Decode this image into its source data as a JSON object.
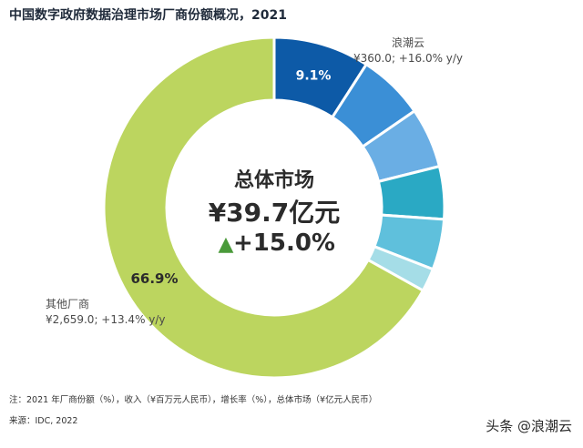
{
  "chart_data": {
    "type": "pie",
    "title": "中国数字政府数据治理市场厂商份额概况，2021",
    "donut": true,
    "slices": [
      {
        "name": "浪潮云",
        "value": 9.1,
        "label": "9.1%",
        "color": "#0d5aa7",
        "annotation": "¥360.0; +16.0% y/y"
      },
      {
        "name": "",
        "value": 6.3,
        "label": "",
        "color": "#3b8fd6",
        "annotation": ""
      },
      {
        "name": "",
        "value": 5.7,
        "label": "",
        "color": "#6aaee4",
        "annotation": ""
      },
      {
        "name": "",
        "value": 5.0,
        "label": "",
        "color": "#2aa9c4",
        "annotation": ""
      },
      {
        "name": "",
        "value": 4.8,
        "label": "",
        "color": "#5fc0dc",
        "annotation": ""
      },
      {
        "name": "",
        "value": 2.2,
        "label": "",
        "color": "#a5dde7",
        "annotation": ""
      },
      {
        "name": "其他厂商",
        "value": 66.9,
        "label": "66.9%",
        "color": "#bcd55f",
        "annotation": "¥2,659.0; +13.4% y/y"
      }
    ],
    "center": {
      "title": "总体市场",
      "total": "¥39.7亿元",
      "growth_arrow": "▲",
      "growth": "+15.0%",
      "arrow_color": "#4a9a3a"
    }
  },
  "note": "注：2021 年厂商份额（%），收入（¥百万元人民币），增长率（%），总体市场（¥亿元人民币）",
  "source": "来源：IDC, 2022",
  "watermark": "头条 @浪潮云"
}
